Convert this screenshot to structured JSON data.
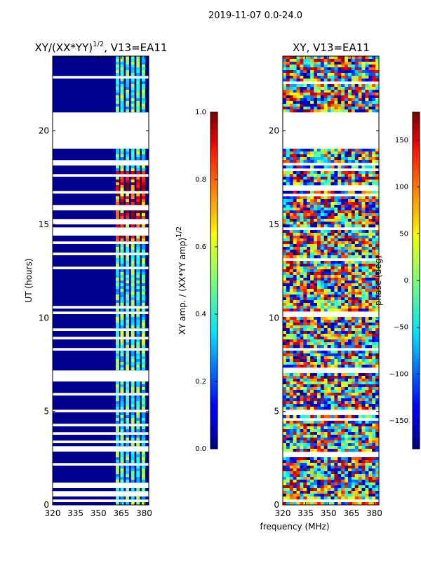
{
  "figure_title": "2019-11-07 0.0-24.0",
  "xlabel": "frequency (MHz)",
  "chart_data": [
    {
      "type": "heatmap",
      "title_main": "XY/(XX*YY)",
      "title_sup": "1/2",
      "title_tail": ", V13=EA11",
      "ylabel": "UT (hours)",
      "xlim": [
        320,
        383
      ],
      "ylim": [
        0,
        24
      ],
      "xticks": [
        "320",
        "335",
        "350",
        "365",
        "380"
      ],
      "xtick_values": [
        320,
        335,
        350,
        365,
        380
      ],
      "yticks": [
        "0",
        "5",
        "10",
        "15",
        "20"
      ],
      "ytick_values": [
        0,
        5,
        10,
        15,
        20
      ],
      "colorbar": {
        "label_main": "XY amp. / (XX*YY amp)",
        "label_sup": "1/2",
        "range": [
          0.0,
          1.0
        ],
        "ticks": [
          "0.0",
          "0.2",
          "0.4",
          "0.6",
          "0.8",
          "1.0"
        ],
        "tick_values": [
          0.0,
          0.2,
          0.4,
          0.6,
          0.8,
          1.0
        ],
        "colormap": "jet"
      },
      "flagged_ut_ranges": [
        [
          4.95,
          5.05
        ],
        [
          19.0,
          21.0
        ],
        [
          7.1,
          7.2
        ],
        [
          13.5,
          13.55
        ]
      ]
    },
    {
      "type": "heatmap",
      "title_main": "XY, V13=EA11",
      "ylim": [
        0,
        24
      ],
      "xlim": [
        320,
        383
      ],
      "xticks": [
        "320",
        "335",
        "350",
        "365",
        "380"
      ],
      "xtick_values": [
        320,
        335,
        350,
        365,
        380
      ],
      "yticks": [
        "0",
        "5",
        "10",
        "15",
        "20"
      ],
      "ytick_values": [
        0,
        5,
        10,
        15,
        20
      ],
      "colorbar": {
        "label": "phase (deg)",
        "range": [
          -180,
          180
        ],
        "ticks": [
          "−150",
          "−100",
          "−50",
          "0",
          "50",
          "100",
          "150"
        ],
        "tick_values": [
          -150,
          -100,
          -50,
          0,
          50,
          100,
          150
        ],
        "colormap": "jet"
      },
      "flagged_ut_ranges": [
        [
          4.95,
          5.05
        ],
        [
          19.0,
          21.0
        ],
        [
          7.1,
          7.2
        ]
      ]
    }
  ]
}
